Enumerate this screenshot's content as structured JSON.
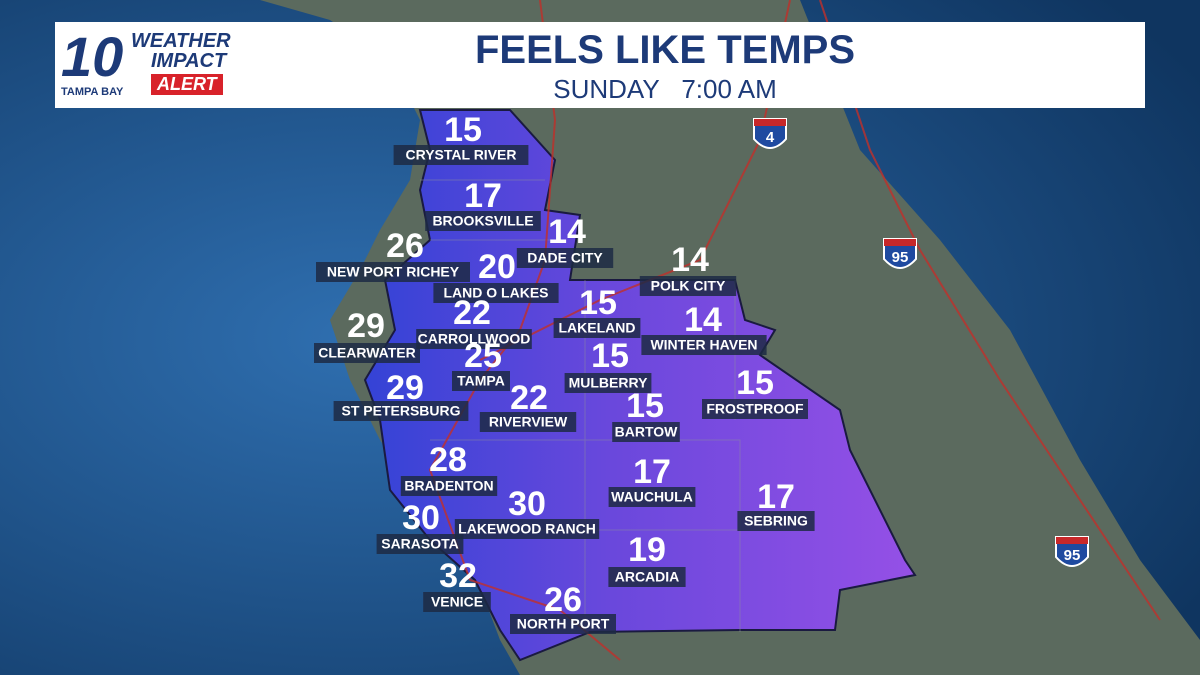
{
  "header": {
    "logo": {
      "number": "10",
      "line1": "WEATHER",
      "line2": "IMPACT",
      "line3": "ALERT",
      "station": "TAMPA BAY"
    },
    "title": "FEELS LIKE TEMPS",
    "day": "SUNDAY",
    "time": "7:00 AM"
  },
  "shields": [
    "4",
    "95",
    "95"
  ],
  "cities": [
    {
      "name": "CRYSTAL RIVER",
      "temp": "15"
    },
    {
      "name": "BROOKSVILLE",
      "temp": "17"
    },
    {
      "name": "DADE CITY",
      "temp": "14"
    },
    {
      "name": "NEW PORT RICHEY",
      "temp": "26"
    },
    {
      "name": "LAND O LAKES",
      "temp": "20"
    },
    {
      "name": "POLK CITY",
      "temp": "14"
    },
    {
      "name": "LAKELAND",
      "temp": "15"
    },
    {
      "name": "CARROLLWOOD",
      "temp": "22"
    },
    {
      "name": "CLEARWATER",
      "temp": "29"
    },
    {
      "name": "WINTER HAVEN",
      "temp": "14"
    },
    {
      "name": "TAMPA",
      "temp": "25"
    },
    {
      "name": "MULBERRY",
      "temp": "15"
    },
    {
      "name": "ST PETERSBURG",
      "temp": "29"
    },
    {
      "name": "RIVERVIEW",
      "temp": "22"
    },
    {
      "name": "FROSTPROOF",
      "temp": "15"
    },
    {
      "name": "BARTOW",
      "temp": "15"
    },
    {
      "name": "BRADENTON",
      "temp": "28"
    },
    {
      "name": "WAUCHULA",
      "temp": "17"
    },
    {
      "name": "LAKEWOOD RANCH",
      "temp": "30"
    },
    {
      "name": "SEBRING",
      "temp": "17"
    },
    {
      "name": "SARASOTA",
      "temp": "30"
    },
    {
      "name": "ARCADIA",
      "temp": "19"
    },
    {
      "name": "VENICE",
      "temp": "32"
    },
    {
      "name": "NORTH PORT",
      "temp": "26"
    }
  ]
}
